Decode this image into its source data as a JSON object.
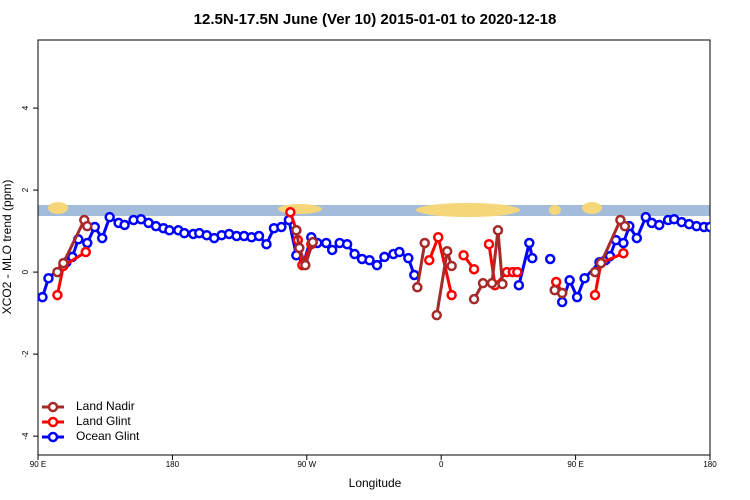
{
  "chart_data": {
    "type": "line",
    "title": "12.5N-17.5N June (Ver 10)   2015-01-01 to 2020-12-18",
    "x_label": "Longitude",
    "y_label": "XCO2 - MLO trend (ppm)",
    "xlim": [
      90,
      540
    ],
    "xticks": [
      {
        "value": 90,
        "label": "90 E"
      },
      180,
      {
        "value": 270,
        "label": "90 W"
      },
      {
        "value": 360,
        "label": "0"
      },
      {
        "value": 450,
        "label": "90 E"
      },
      {
        "value": 540,
        "label": "180"
      }
    ],
    "ylim": [
      -4.46,
      5.66
    ],
    "yticks": [
      -4,
      -2,
      0,
      2,
      4
    ],
    "legend": "bottom-left",
    "series": [
      {
        "name": "Land Nadir",
        "color": "#a52a2a",
        "x": [
          103,
          107,
          121,
          123,
          null,
          263,
          265,
          269,
          274,
          null,
          344,
          349,
          null,
          357,
          364,
          367,
          null,
          382,
          388,
          394,
          398,
          401,
          null,
          436,
          441,
          null,
          463,
          467,
          480,
          483
        ],
        "values": [
          0.0,
          0.22,
          1.27,
          1.12,
          null,
          1.02,
          0.59,
          0.17,
          0.73,
          null,
          -0.37,
          0.71,
          null,
          -1.05,
          0.51,
          0.15,
          null,
          -0.66,
          -0.27,
          -0.27,
          1.02,
          -0.29,
          null,
          -0.44,
          -0.51,
          null,
          0.0,
          0.22,
          1.27,
          1.12
        ]
      },
      {
        "name": "Land Glint",
        "color": "#ff0000",
        "x": [
          103,
          107,
          122,
          null,
          259,
          263,
          264,
          267,
          273,
          null,
          352,
          358,
          367,
          null,
          375,
          382,
          null,
          392,
          396,
          404,
          408,
          411,
          null,
          437,
          441,
          null,
          463,
          467,
          482
        ],
        "values": [
          -0.56,
          0.15,
          0.49,
          null,
          1.46,
          1.02,
          0.78,
          0.17,
          0.68,
          null,
          0.29,
          0.85,
          -0.56,
          null,
          0.41,
          0.07,
          null,
          0.68,
          -0.32,
          0.0,
          0.0,
          0.0,
          null,
          -0.24,
          -0.51,
          null,
          -0.56,
          0.22,
          0.46
        ]
      },
      {
        "name": "Ocean Glint",
        "color": "#0000ff",
        "x": [
          93,
          97,
          109,
          113,
          117,
          123,
          128,
          133,
          138,
          144,
          148,
          154,
          159,
          164,
          169,
          174,
          178,
          184,
          188,
          194,
          198,
          203,
          208,
          213,
          218,
          223,
          228,
          233,
          238,
          243,
          248,
          253,
          258,
          263,
          268,
          273,
          277,
          283,
          287,
          292,
          297,
          302,
          307,
          312,
          317,
          322,
          328,
          332,
          338,
          342,
          null,
          412,
          419,
          421,
          null,
          433,
          null,
          441,
          446,
          451,
          456,
          466,
          470,
          473,
          477,
          482,
          486,
          491,
          497,
          501,
          506,
          512,
          516,
          521,
          526,
          531,
          536,
          540
        ],
        "values": [
          -0.61,
          -0.15,
          0.24,
          0.37,
          0.8,
          0.71,
          1.1,
          0.83,
          1.34,
          1.2,
          1.15,
          1.27,
          1.29,
          1.2,
          1.12,
          1.07,
          1.02,
          1.02,
          0.95,
          0.93,
          0.95,
          0.9,
          0.83,
          0.9,
          0.93,
          0.88,
          0.88,
          0.85,
          0.88,
          0.68,
          1.07,
          1.1,
          1.27,
          0.41,
          0.24,
          0.85,
          0.71,
          0.71,
          0.54,
          0.71,
          0.68,
          0.44,
          0.32,
          0.29,
          0.17,
          0.37,
          0.44,
          0.49,
          0.34,
          -0.07,
          null,
          -0.32,
          0.71,
          0.34,
          null,
          0.32,
          null,
          -0.73,
          -0.2,
          -0.61,
          -0.15,
          0.24,
          0.29,
          0.39,
          0.78,
          0.71,
          1.12,
          0.83,
          1.34,
          1.2,
          1.15,
          1.27,
          1.29,
          1.22,
          1.17,
          1.12,
          1.1,
          1.1
        ]
      }
    ]
  }
}
